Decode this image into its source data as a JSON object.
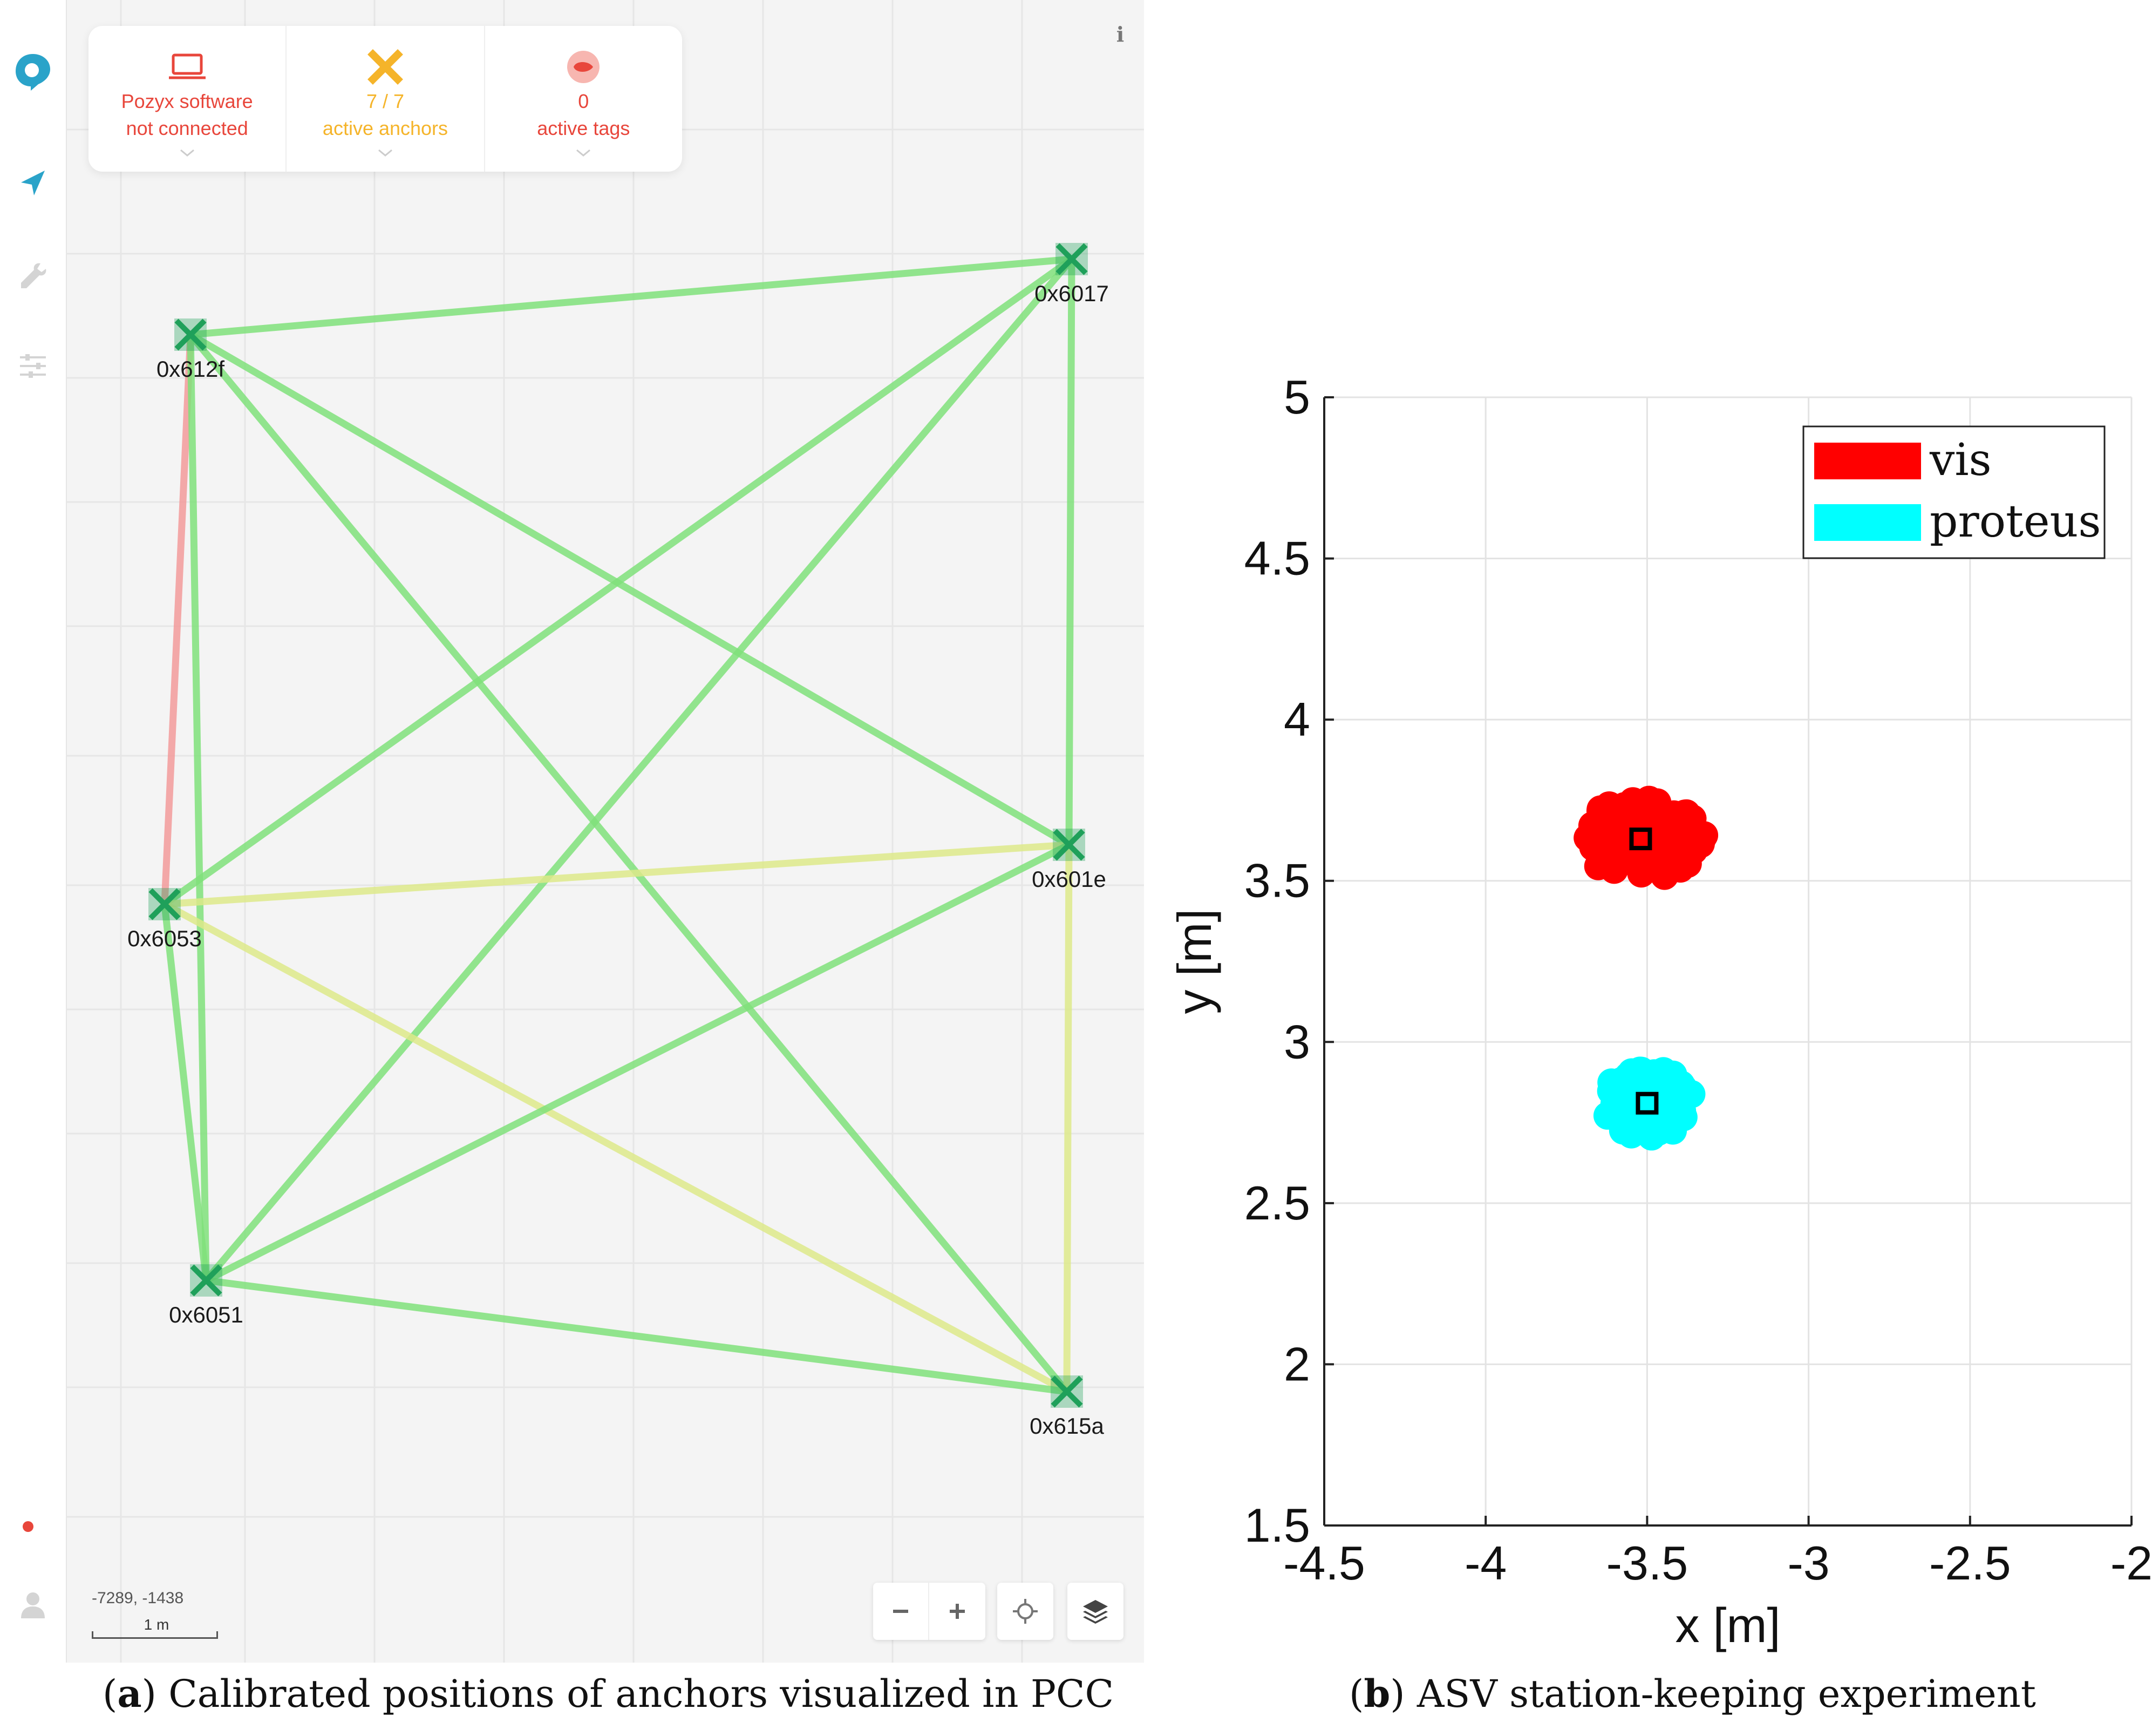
{
  "pcc": {
    "status": {
      "software": {
        "line1": "Pozyx software",
        "line2": "not connected",
        "icon": "laptop-icon",
        "color": "#e8463b"
      },
      "anchors": {
        "line1": "7 / 7",
        "line2": "active anchors",
        "icon": "anchor-x-icon",
        "color": "#f5b42a"
      },
      "tags": {
        "line1": "0",
        "line2": "active tags",
        "icon": "tag-icon",
        "color": "#e8463b"
      }
    },
    "info_label": "i",
    "coordinates": "-7289, -1438",
    "scale_label": "1 m",
    "anchors": [
      {
        "id": "0x6017"
      },
      {
        "id": "0x612f"
      },
      {
        "id": "0x601e"
      },
      {
        "id": "0x6053"
      },
      {
        "id": "0x6051"
      },
      {
        "id": "0x615a"
      }
    ],
    "links": [
      {
        "a": "0x612f",
        "b": "0x6053",
        "status": "bad"
      },
      {
        "a": "0x612f",
        "b": "0x6017",
        "status": "good"
      },
      {
        "a": "0x612f",
        "b": "0x601e",
        "status": "good"
      },
      {
        "a": "0x612f",
        "b": "0x6051",
        "status": "good"
      },
      {
        "a": "0x612f",
        "b": "0x615a",
        "status": "good"
      },
      {
        "a": "0x6017",
        "b": "0x601e",
        "status": "good"
      },
      {
        "a": "0x6017",
        "b": "0x6053",
        "status": "good"
      },
      {
        "a": "0x6017",
        "b": "0x6051",
        "status": "good"
      },
      {
        "a": "0x6053",
        "b": "0x601e",
        "status": "weak"
      },
      {
        "a": "0x6053",
        "b": "0x6051",
        "status": "good"
      },
      {
        "a": "0x6053",
        "b": "0x615a",
        "status": "weak"
      },
      {
        "a": "0x601e",
        "b": "0x6051",
        "status": "good"
      },
      {
        "a": "0x601e",
        "b": "0x615a",
        "status": "weak"
      },
      {
        "a": "0x6051",
        "b": "0x615a",
        "status": "good"
      }
    ],
    "colors": {
      "accent": "#2aa3c9",
      "good": "#7fe07a",
      "bad": "#f29a9a",
      "weak": "#dde98a",
      "anchor": "#1fa05a",
      "record": "#e8463b"
    }
  },
  "captions": {
    "a_letter": "a",
    "a_text": "Calibrated positions of anchors visualized in PCC",
    "b_letter": "b",
    "b_text": "ASV station-keeping experiment"
  },
  "chart_data": {
    "type": "scatter",
    "xlabel": "x [m]",
    "ylabel": "y [m]",
    "xlim": [
      -4.5,
      -2
    ],
    "ylim": [
      1.5,
      5
    ],
    "xticks": [
      -4.5,
      -4,
      -3.5,
      -3,
      -2.5,
      -2
    ],
    "xtick_labels": [
      "-4.5",
      "-4",
      "-3.5",
      "-3",
      "-2.5",
      "-2"
    ],
    "yticks": [
      1.5,
      2,
      2.5,
      3,
      3.5,
      4,
      4.5,
      5
    ],
    "ytick_labels": [
      "1.5",
      "2",
      "2.5",
      "3",
      "3.5",
      "4",
      "4.5",
      "5"
    ],
    "grid": true,
    "legend_position": "top-right",
    "series": [
      {
        "name": "vis",
        "color": "#ff0000",
        "center": [
          -3.52,
          3.63
        ],
        "spread": [
          0.22,
          0.14
        ]
      },
      {
        "name": "proteus",
        "color": "#00ffff",
        "center": [
          -3.5,
          2.81
        ],
        "spread": [
          0.16,
          0.12
        ]
      }
    ]
  }
}
